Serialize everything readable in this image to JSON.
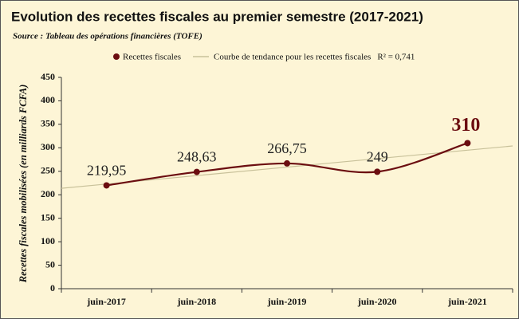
{
  "chart_data": {
    "type": "line",
    "title": "Evolution des recettes fiscales au premier semestre (2017-2021)",
    "subtitle": "Source : Tableau des opérations financières (TOFE)",
    "y_label": "Recettes fiscales mobilisées (en milliards FCFA)",
    "categories": [
      "juin-2017",
      "juin-2018",
      "juin-2019",
      "juin-2020",
      "juin-2021"
    ],
    "series": [
      {
        "name": "Recettes fiscales",
        "color": "#6b0d10",
        "values": [
          219.95,
          248.63,
          266.75,
          249,
          310
        ],
        "value_labels": [
          "219,95",
          "248,63",
          "266,75",
          "249",
          "310"
        ]
      },
      {
        "name": "Courbe de tendance pour les recettes fiscales",
        "color": "#c8c19a",
        "values": [
          222.8,
          240.8,
          258.9,
          276.9,
          294.9
        ]
      }
    ],
    "annotation": "R² = 0,741",
    "ylim": [
      0,
      450
    ],
    "yticks": [
      0,
      50,
      100,
      150,
      200,
      250,
      300,
      350,
      400,
      450
    ],
    "grid": false
  }
}
